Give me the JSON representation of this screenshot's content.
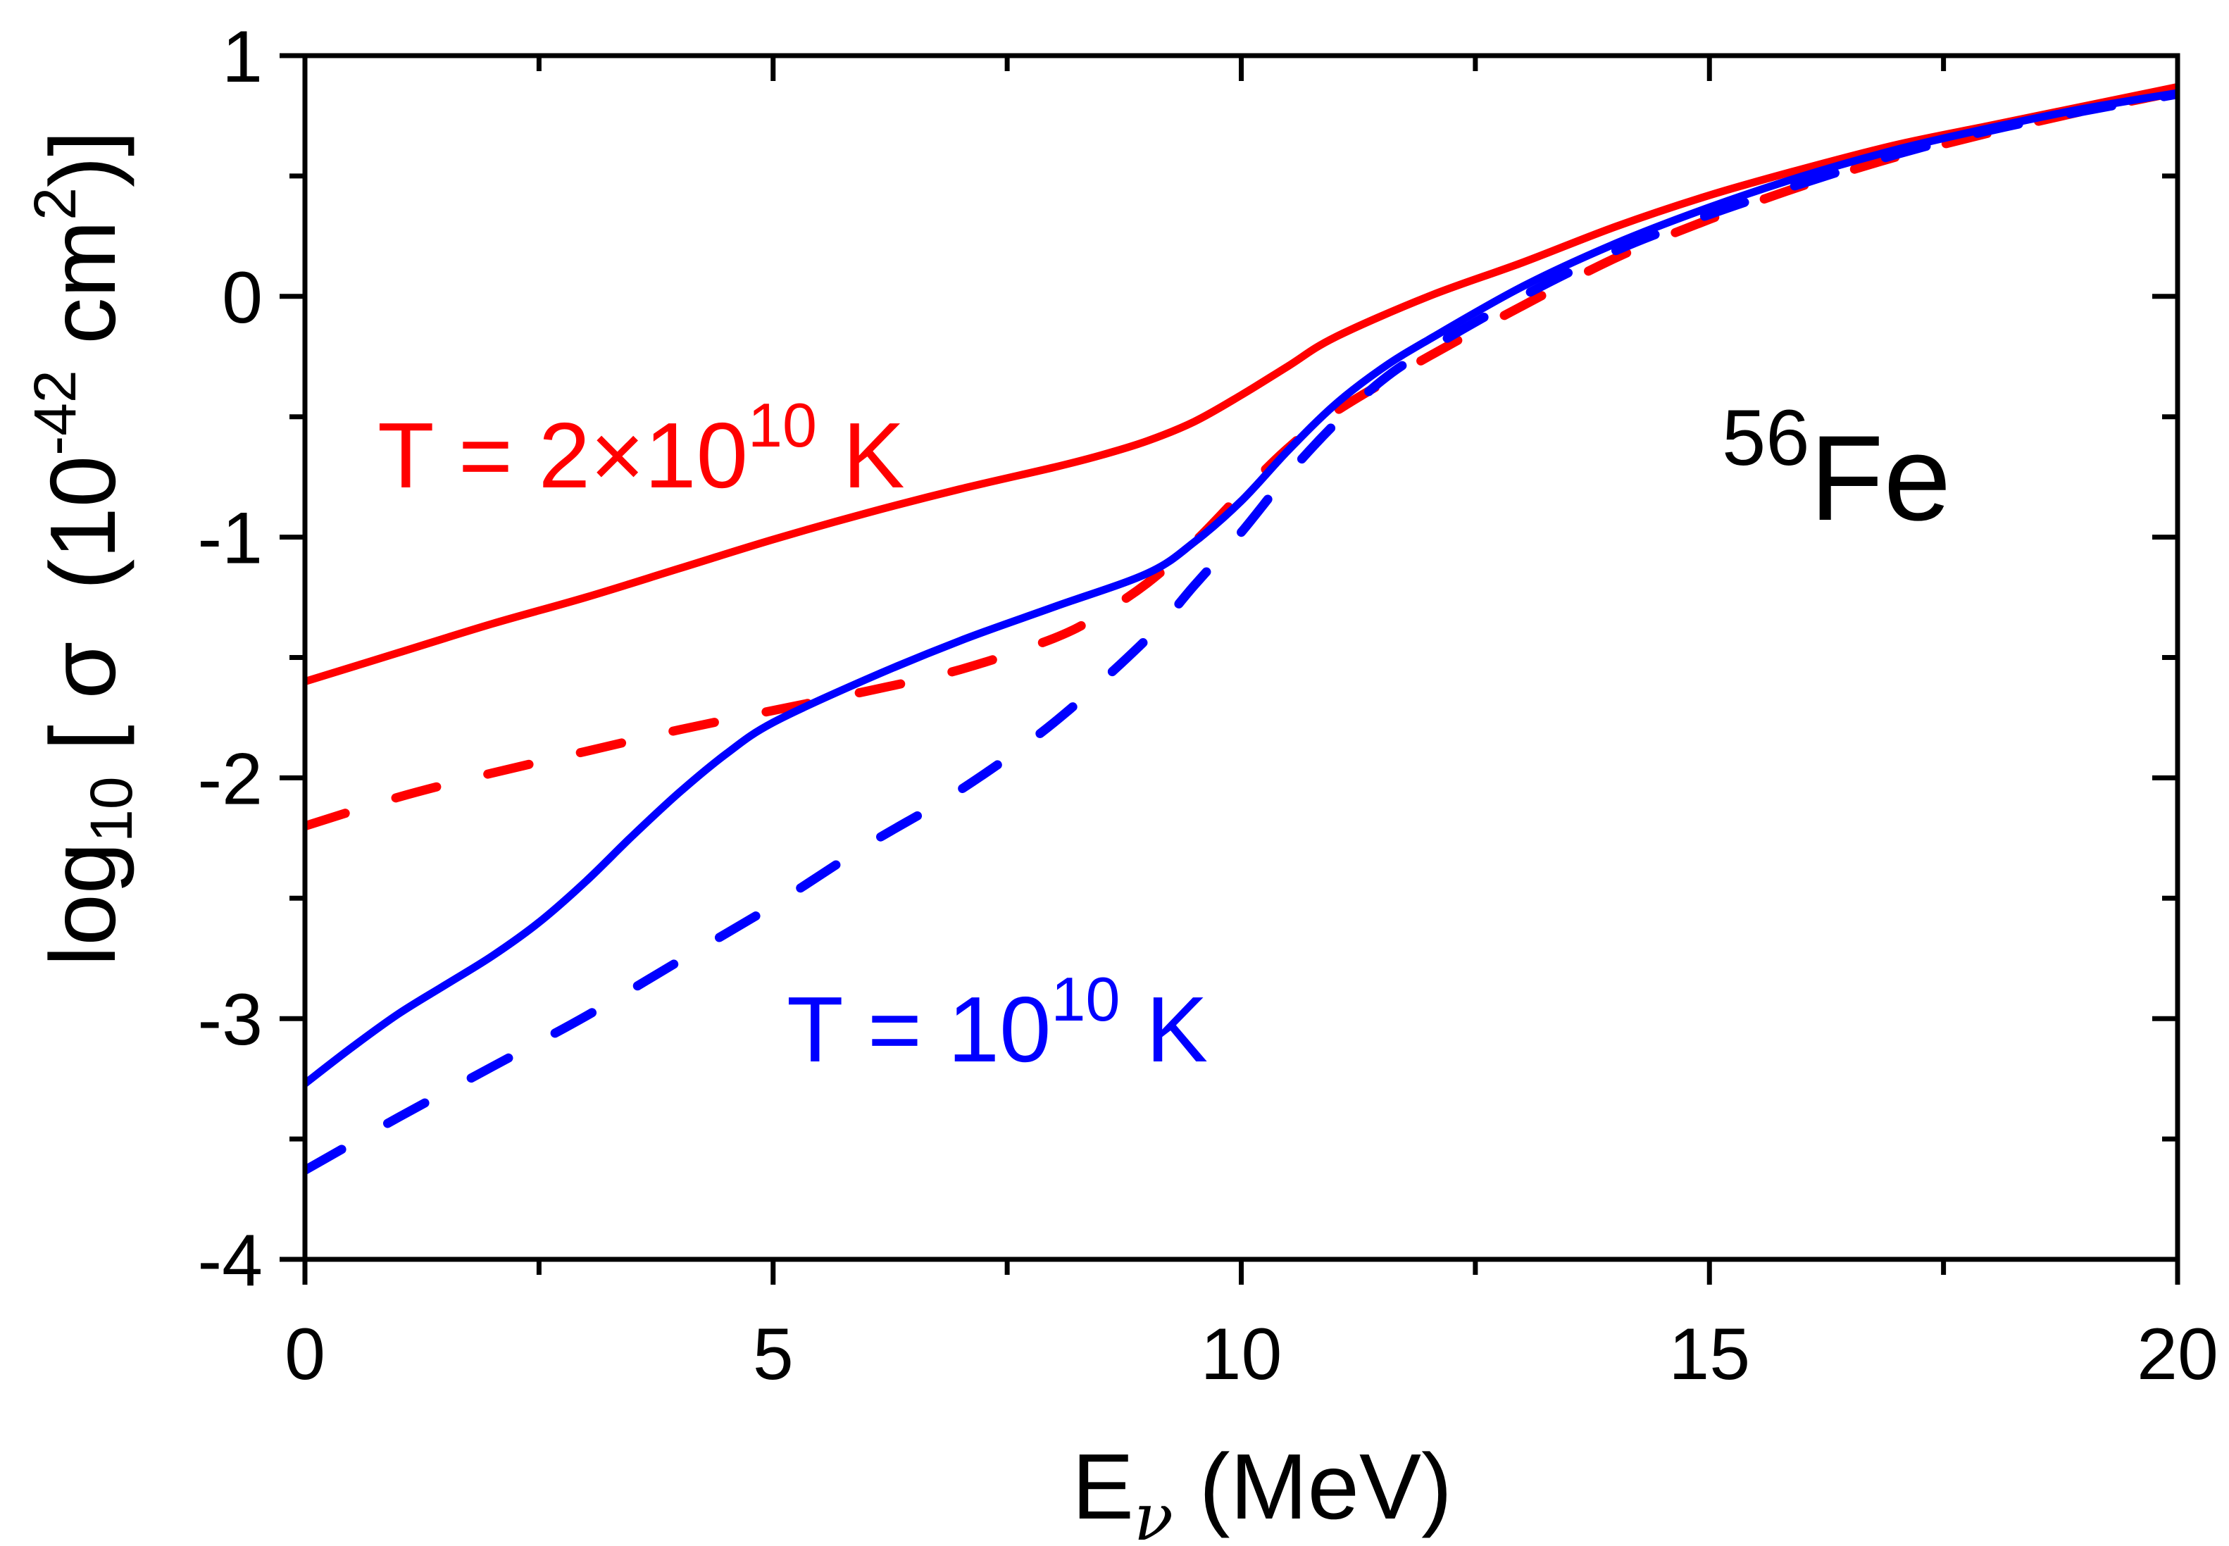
{
  "chart_data": {
    "type": "line",
    "title": "",
    "xlabel": {
      "main": "E",
      "subscript": "ν",
      "unit": " (MeV)"
    },
    "ylabel": {
      "prefix": "log",
      "subscript": "10",
      "middle": " [ σ  (10",
      "superscript1": "-42",
      "middle2": " cm",
      "superscript2": "2",
      "suffix": ")]"
    },
    "xlim": [
      0,
      20
    ],
    "ylim": [
      -4,
      1
    ],
    "x_ticks": [
      0,
      5,
      10,
      15,
      20
    ],
    "x_tick_labels": [
      "0",
      "5",
      "10",
      "15",
      "20"
    ],
    "x_minor_step": 2.5,
    "y_ticks": [
      -4,
      -3,
      -2,
      -1,
      0,
      1
    ],
    "y_tick_labels": [
      "-4",
      "-3",
      "-2",
      "-1",
      "0",
      "1"
    ],
    "y_minor_step": 0.5,
    "grid": false,
    "legend": null,
    "series": [
      {
        "name": "T = 2x10^10 K (solid)",
        "color": "#ff0000",
        "style": "solid",
        "x": [
          0,
          1,
          2,
          3,
          4,
          5,
          6,
          7,
          8,
          8.5,
          9,
          9.5,
          10,
          10.5,
          11,
          12,
          13,
          14,
          15,
          16,
          17,
          18,
          19,
          20
        ],
        "y": [
          -1.6,
          -1.48,
          -1.36,
          -1.25,
          -1.13,
          -1.01,
          -0.9,
          -0.8,
          -0.71,
          -0.66,
          -0.6,
          -0.52,
          -0.41,
          -0.29,
          -0.17,
          0.0,
          0.14,
          0.29,
          0.42,
          0.53,
          0.63,
          0.71,
          0.79,
          0.87
        ]
      },
      {
        "name": "T = 2x10^10 K (dashed)",
        "color": "#ff0000",
        "style": "dashed",
        "x": [
          0,
          1,
          2,
          3,
          4,
          5,
          6,
          7,
          8,
          8.5,
          9,
          9.5,
          10,
          10.5,
          11,
          12,
          13,
          14,
          15,
          16,
          17,
          18,
          19,
          20
        ],
        "y": [
          -2.2,
          -2.08,
          -1.98,
          -1.89,
          -1.8,
          -1.72,
          -1.64,
          -1.55,
          -1.42,
          -1.32,
          -1.19,
          -1.02,
          -0.82,
          -0.63,
          -0.48,
          -0.25,
          -0.04,
          0.16,
          0.32,
          0.46,
          0.58,
          0.68,
          0.77,
          0.85
        ]
      },
      {
        "name": "T = 10^10 K (solid)",
        "color": "#0000ff",
        "style": "solid",
        "x": [
          0,
          0.5,
          1,
          1.5,
          2,
          2.5,
          3,
          3.5,
          4,
          4.5,
          5,
          6,
          7,
          8,
          9,
          9.5,
          10,
          10.5,
          11,
          11.5,
          12,
          13,
          14,
          15,
          16,
          17,
          18,
          19,
          20
        ],
        "y": [
          -3.27,
          -3.12,
          -2.98,
          -2.86,
          -2.74,
          -2.6,
          -2.43,
          -2.24,
          -2.06,
          -1.9,
          -1.77,
          -1.59,
          -1.43,
          -1.29,
          -1.15,
          -1.02,
          -0.85,
          -0.64,
          -0.45,
          -0.3,
          -0.18,
          0.04,
          0.22,
          0.37,
          0.5,
          0.61,
          0.7,
          0.78,
          0.845
        ]
      },
      {
        "name": "T = 10^10 K (dashed)",
        "color": "#0000ff",
        "style": "dashed",
        "x": [
          0,
          1,
          2,
          3,
          4,
          5,
          6,
          7,
          8,
          9,
          9.5,
          10,
          10.5,
          11,
          11.5,
          12,
          13,
          14,
          15,
          16,
          17,
          18,
          19,
          20
        ],
        "y": [
          -3.63,
          -3.41,
          -3.2,
          -2.99,
          -2.76,
          -2.53,
          -2.28,
          -2.05,
          -1.77,
          -1.42,
          -1.2,
          -0.98,
          -0.74,
          -0.53,
          -0.35,
          -0.22,
          0.0,
          0.19,
          0.34,
          0.47,
          0.59,
          0.69,
          0.77,
          0.84
        ]
      }
    ],
    "annotations": [
      {
        "id": "red-label",
        "text_main": "T = 2×10",
        "text_sup": "10",
        "text_tail": " K",
        "color": "#ff0000",
        "at": [
          1.6,
          -0.55
        ]
      },
      {
        "id": "blue-label",
        "text_main": "T = 10",
        "text_sup": "10",
        "text_tail": " K",
        "color": "#0000ff",
        "at": [
          10.3,
          -3.05
        ]
      },
      {
        "id": "nucleus-label",
        "text_sup": "56",
        "text_main": "Fe",
        "color": "#000000",
        "at": [
          16.5,
          -0.9
        ]
      }
    ]
  }
}
